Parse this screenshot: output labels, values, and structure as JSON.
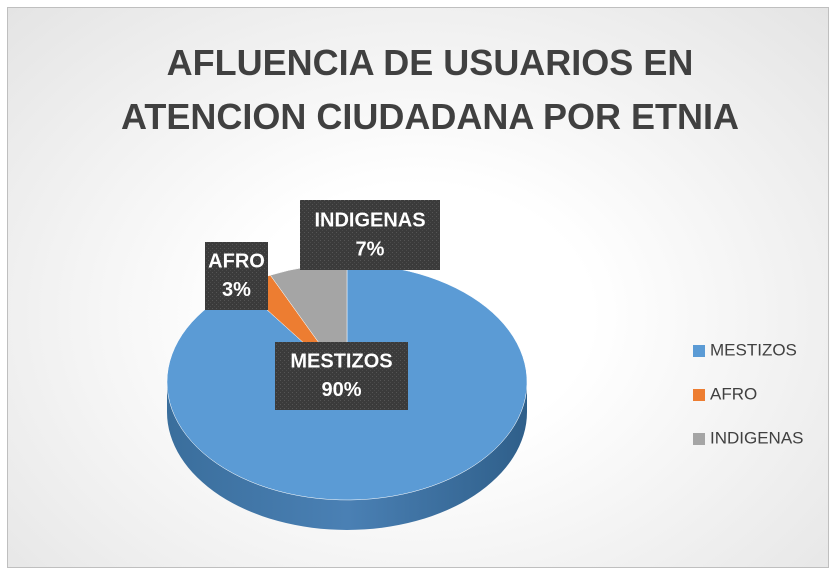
{
  "chart_data": {
    "type": "pie",
    "title": "AFLUENCIA DE USUARIOS EN ATENCION CIUDADANA POR ETNIA",
    "categories": [
      "MESTIZOS",
      "AFRO",
      "INDIGENAS"
    ],
    "values": [
      90,
      3,
      7
    ],
    "value_labels": [
      "90%",
      "3%",
      "7%"
    ],
    "colors": [
      "#5b9bd5",
      "#ed7d31",
      "#a5a5a5"
    ],
    "legend": "right"
  }
}
